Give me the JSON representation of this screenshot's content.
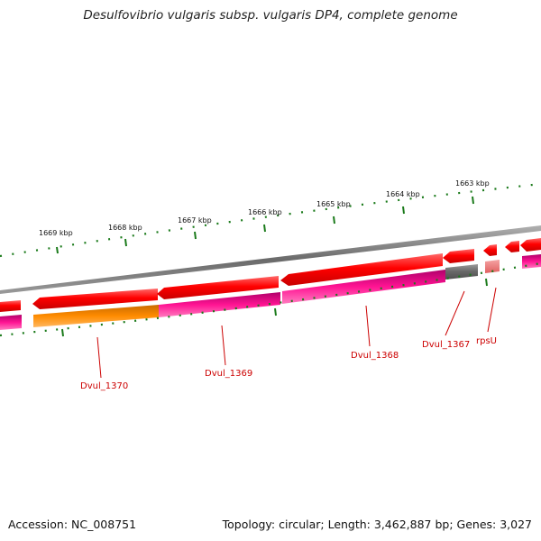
{
  "title": "Desulfovibrio vulgaris subsp. vulgaris DP4, complete genome",
  "footer": {
    "accession": "Accession: NC_008751",
    "summary": "Topology: circular; Length: 3,462,887 bp; Genes: 3,027"
  },
  "colors": {
    "forward_gene": "#ff0000",
    "cds_magenta": "#ff1493",
    "cds_orange": "#ff8c00",
    "pseudo_grey": "#666666",
    "rrna_pink": "#f08080",
    "backbone": "#808080",
    "tick": "#1a7a1a",
    "label": "#cc0000"
  },
  "scale_labels": [
    "1663 kbp",
    "1664 kbp",
    "1665 kbp",
    "1666 kbp",
    "1667 kbp",
    "1668 kbp",
    "1669 kbp"
  ],
  "gene_labels": [
    "rpsU",
    "Dvul_1367",
    "Dvul_1368",
    "Dvul_1369",
    "Dvul_1370"
  ]
}
